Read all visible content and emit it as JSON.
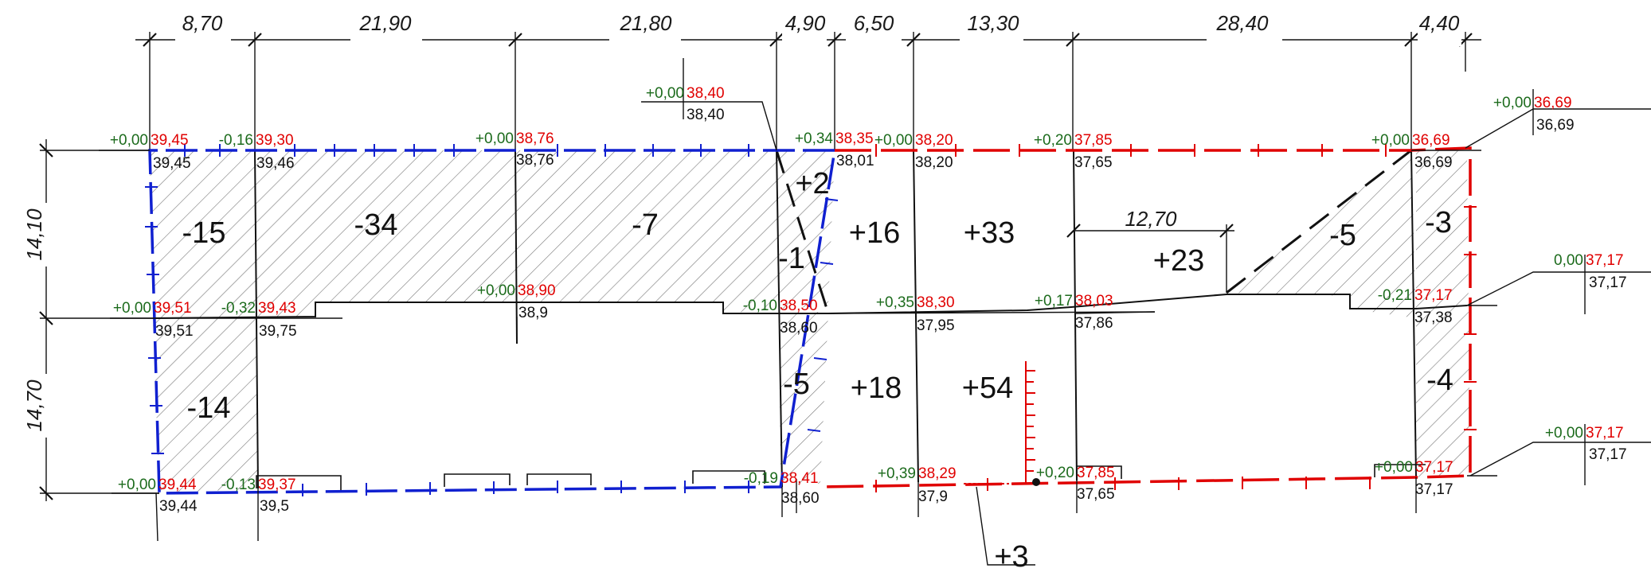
{
  "dimensions": {
    "horizontal": [
      "8,70",
      "21,90",
      "21,80",
      "4,90",
      "6,50",
      "13,30",
      "28,40",
      "4,40"
    ],
    "vertical": [
      "14,10",
      "14,70"
    ],
    "inner": "12,70"
  },
  "volumes": [
    "-15",
    "-34",
    "-7",
    "+2",
    "-1",
    "+16",
    "+33",
    "+23",
    "-5",
    "-3",
    "-14",
    "-5",
    "+18",
    "+54",
    "-4",
    "+3"
  ],
  "levels": [
    {
      "d": "+0,00",
      "p": "39,45",
      "e": "39,45"
    },
    {
      "d": "-0,16",
      "p": "39,30",
      "e": "39,46"
    },
    {
      "d": "+0,00",
      "p": "38,76",
      "e": "38,76"
    },
    {
      "d": "+0,00",
      "p": "38,40",
      "e": "38,40"
    },
    {
      "d": "+0,34",
      "p": "38,35",
      "e": "38,01"
    },
    {
      "d": "+0,00",
      "p": "38,20",
      "e": "38,20"
    },
    {
      "d": "+0,20",
      "p": "37,85",
      "e": "37,65"
    },
    {
      "d": "+0,00",
      "p": "36,69",
      "e": "36,69"
    },
    {
      "d": "+0,00",
      "p": "36,69",
      "e": "36,69"
    },
    {
      "d": "+0,00",
      "p": "39,51",
      "e": "39,51"
    },
    {
      "d": "-0,32",
      "p": "39,43",
      "e": "39,75"
    },
    {
      "d": "+0,00",
      "p": "38,90",
      "e": "38,9"
    },
    {
      "d": "-0,10",
      "p": "38,50",
      "e": "38,60"
    },
    {
      "d": "+0,35",
      "p": "38,30",
      "e": "37,95"
    },
    {
      "d": "+0,17",
      "p": "38,03",
      "e": "37,86"
    },
    {
      "d": "-0,21",
      "p": "37,17",
      "e": "37,38"
    },
    {
      "d": "0,00",
      "p": "37,17",
      "e": "37,17"
    },
    {
      "d": "+0,00",
      "p": "39,44",
      "e": "39,44"
    },
    {
      "d": "-0,13",
      "p": "39,37",
      "e": "39,5"
    },
    {
      "d": "-0,19",
      "p": "38,41",
      "e": "38,60"
    },
    {
      "d": "+0,39",
      "p": "38,29",
      "e": "37,9"
    },
    {
      "d": "+0,20",
      "p": "37,85",
      "e": "37,65"
    },
    {
      "d": "+0,00",
      "p": "37,17",
      "e": "37,17"
    },
    {
      "d": "+0,00",
      "p": "37,17",
      "e": "37,17"
    }
  ],
  "colors": {
    "grid": "#111111",
    "cut_boundary": "#1020d0",
    "fill_boundary": "#e00000",
    "delta_text": "#1c6b1c",
    "design_text": "#e00000",
    "hatch": "#777777"
  }
}
